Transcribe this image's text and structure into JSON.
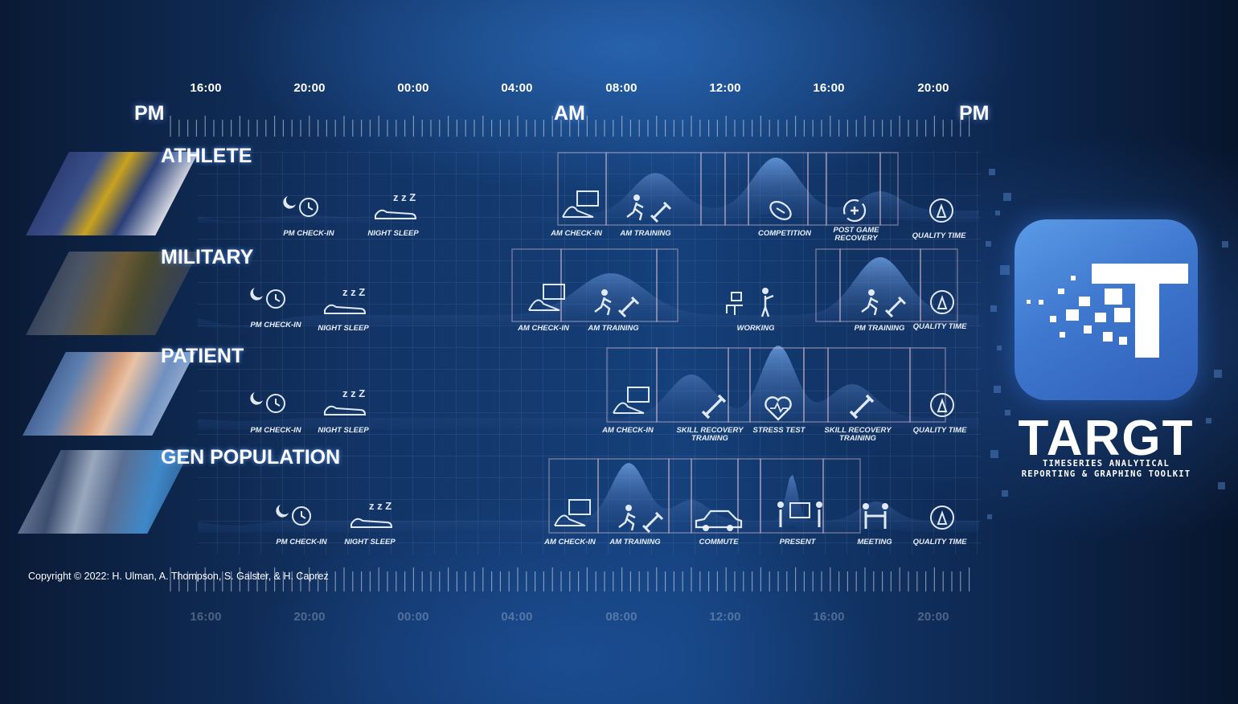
{
  "top_axis": {
    "hours": [
      "16:00",
      "20:00",
      "00:00",
      "04:00",
      "08:00",
      "12:00",
      "16:00",
      "20:00"
    ],
    "markers": [
      "PM",
      "AM",
      "PM"
    ]
  },
  "bottom_axis": {
    "hours": [
      "16:00",
      "20:00",
      "00:00",
      "04:00",
      "08:00",
      "12:00",
      "16:00",
      "20:00"
    ]
  },
  "rows": [
    {
      "title": "ATHLETE",
      "activities": [
        "PM CHECK-IN",
        "NIGHT SLEEP",
        "AM CHECK-IN",
        "AM TRAINING",
        "COMPETITION",
        "POST GAME RECOVERY",
        "QUALITY TIME"
      ]
    },
    {
      "title": "MILITARY",
      "activities": [
        "PM CHECK-IN",
        "NIGHT SLEEP",
        "AM CHECK-IN",
        "AM TRAINING",
        "WORKING",
        "PM TRAINING",
        "QUALITY TIME"
      ]
    },
    {
      "title": "PATIENT",
      "activities": [
        "PM CHECK-IN",
        "NIGHT SLEEP",
        "AM CHECK-IN",
        "SKILL RECOVERY TRAINING",
        "STRESS TEST",
        "SKILL RECOVERY TRAINING",
        "QUALITY TIME"
      ]
    },
    {
      "title": "GEN POPULATION",
      "activities": [
        "PM CHECK-IN",
        "NIGHT SLEEP",
        "AM CHECK-IN",
        "AM TRAINING",
        "COMMUTE",
        "PRESENT",
        "MEETING",
        "QUALITY TIME"
      ]
    }
  ],
  "copyright": "Copyright © 2022: H. Ulman, A. Thompson, S. Galster, & H. Caprez",
  "brand": {
    "name": "TARGT",
    "subtitle_line1": "TIMESERIES ANALYTICAL",
    "subtitle_line2": "REPORTING & GRAPHING TOOLKIT"
  },
  "colors": {
    "accent": "#3f78cf",
    "wave": "#5a8fd8",
    "text": "#ffffff"
  }
}
